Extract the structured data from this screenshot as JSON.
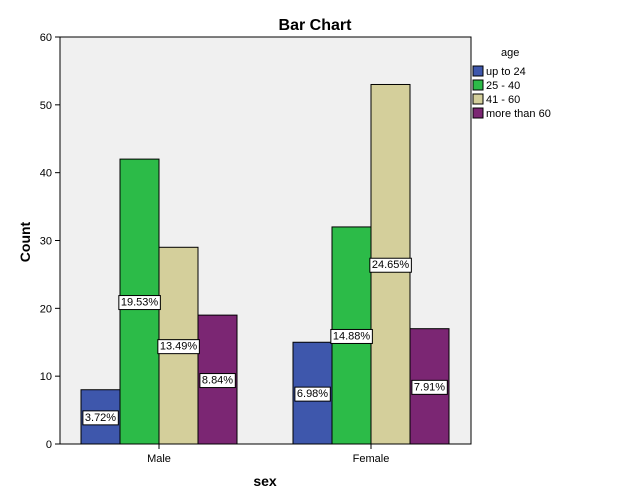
{
  "chart_data": {
    "type": "bar",
    "title": "Bar Chart",
    "xlabel": "sex",
    "ylabel": "Count",
    "ylim": [
      0,
      60
    ],
    "yticks": [
      0,
      10,
      20,
      30,
      40,
      50,
      60
    ],
    "grid": false,
    "categories": [
      "Male",
      "Female"
    ],
    "legend": {
      "title": "age",
      "placement": "right"
    },
    "series": [
      {
        "name": "up to 24",
        "color": "#3e57ac",
        "values": [
          8,
          15
        ],
        "labels": [
          "3.72%",
          "6.98%"
        ]
      },
      {
        "name": "25 - 40",
        "color": "#2cbb48",
        "values": [
          42,
          32
        ],
        "labels": [
          "19.53%",
          "14.88%"
        ]
      },
      {
        "name": "41 - 60",
        "color": "#d4cf9b",
        "values": [
          29,
          53
        ],
        "labels": [
          "13.49%",
          "24.65%"
        ]
      },
      {
        "name": "more than 60",
        "color": "#7b2673",
        "values": [
          19,
          17
        ],
        "labels": [
          "8.84%",
          "7.91%"
        ]
      }
    ],
    "plot_background": "#f0f0f0"
  }
}
